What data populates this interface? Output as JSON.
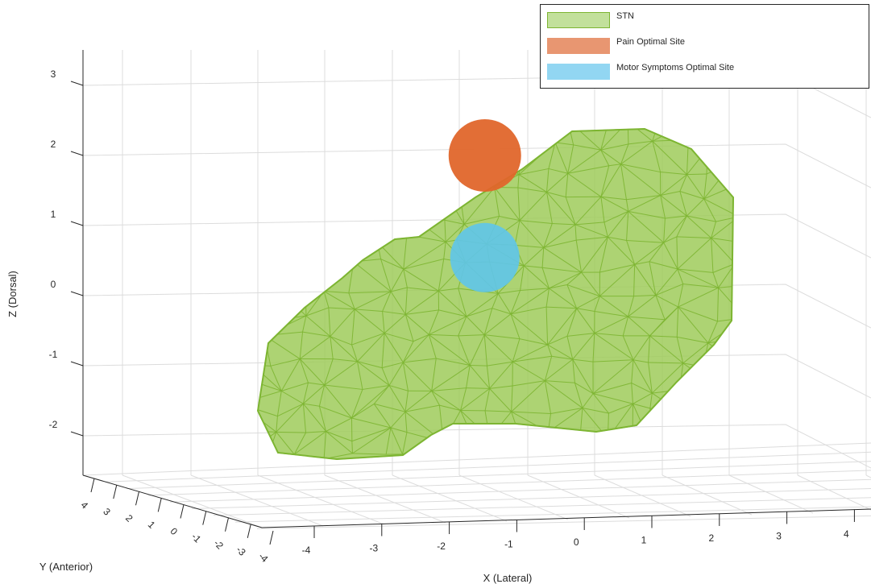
{
  "chart_data": {
    "type": "3d-surface-mesh",
    "xlabel": "X (Lateral)",
    "ylabel": "Y (Anterior)",
    "zlabel": "Z (Dorsal)",
    "xlim": [
      -4,
      4
    ],
    "ylim": [
      -4,
      4
    ],
    "zlim": [
      -2.5,
      3.3
    ],
    "x_ticks": [
      "-4",
      "-3",
      "-2",
      "-1",
      "0",
      "1",
      "2",
      "3",
      "4"
    ],
    "y_ticks": [
      "4",
      "3",
      "2",
      "1",
      "0",
      "-1",
      "-2",
      "-3",
      "-4"
    ],
    "z_ticks": [
      "3",
      "2",
      "1",
      "0",
      "-1",
      "-2"
    ],
    "grid": true,
    "legend_position": "top-right",
    "series": [
      {
        "name": "STN",
        "kind": "mesh",
        "color": "#7db532",
        "fill": "#9fcb5a",
        "extent": {
          "x": [
            -4.8,
            2.4
          ],
          "z": [
            -2.3,
            2.4
          ]
        }
      },
      {
        "name": "Pain Optimal Site",
        "kind": "sphere",
        "color": "#e0662b",
        "center": {
          "x": -1.45,
          "z": 2.0
        },
        "radius": 0.5
      },
      {
        "name": "Motor Symptoms Optimal Site",
        "kind": "sphere",
        "color": "#5fc5ea",
        "center": {
          "x": -1.45,
          "z": 0.6
        },
        "radius": 0.5
      }
    ]
  },
  "legend": {
    "items": [
      {
        "label": "STN",
        "fill": "#c2e09b",
        "border": "#7db532"
      },
      {
        "label": "Pain Optimal Site",
        "fill": "#e89671",
        "border": "#e89671"
      },
      {
        "label": "Motor Symptoms Optimal Site",
        "fill": "#92d6f2",
        "border": "#92d6f2"
      }
    ]
  }
}
